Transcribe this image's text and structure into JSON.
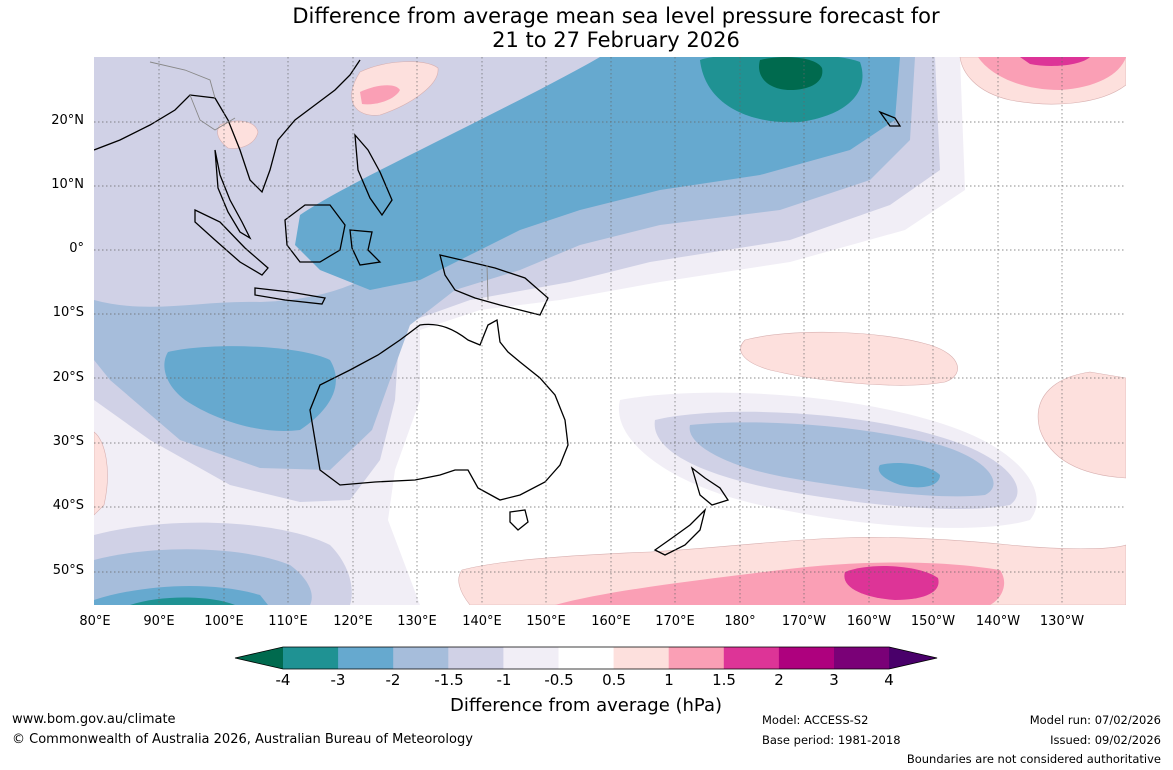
{
  "title": {
    "line1": "Difference from average mean sea level pressure forecast for",
    "line2": "21 to 27 February 2026"
  },
  "map": {
    "lat_ticks": [
      "20°N",
      "10°N",
      "0°",
      "10°S",
      "20°S",
      "30°S",
      "40°S",
      "50°S"
    ],
    "lon_ticks": [
      "80°E",
      "90°E",
      "100°E",
      "110°E",
      "120°E",
      "130°E",
      "140°E",
      "150°E",
      "160°E",
      "170°E",
      "180°",
      "170°W",
      "160°W",
      "150°W",
      "140°W",
      "130°W"
    ]
  },
  "legend": {
    "title": "Difference from average (hPa)",
    "labels": [
      "-4",
      "-3",
      "-2",
      "-1.5",
      "-1",
      "-0.5",
      "0.5",
      "1",
      "1.5",
      "2",
      "3",
      "4"
    ],
    "colors": [
      "#006a4e",
      "#1f9293",
      "#66a9cf",
      "#a6bddb",
      "#d0d1e6",
      "#f1eef6",
      "#ffffff",
      "#fde0dd",
      "#fa9fb5",
      "#dd3497",
      "#ae017e",
      "#7a0177",
      "#49006a"
    ]
  },
  "footer": {
    "website": "www.bom.gov.au/climate",
    "copyright": "© Commonwealth of Australia 2026, Australian Bureau of Meteorology",
    "model": "Model: ACCESS-S2",
    "base_period": "Base period: 1981-2018",
    "model_run": "Model run: 07/02/2026",
    "issued": "Issued: 09/02/2026",
    "disclaimer": "Boundaries are not considered authoritative"
  }
}
